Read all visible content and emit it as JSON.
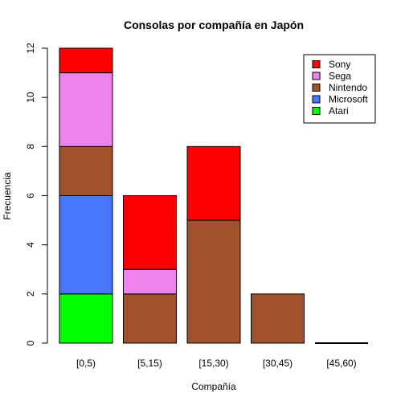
{
  "chart_data": {
    "type": "bar",
    "stacked": true,
    "title": "Consolas por compañía en Japón",
    "xlabel": "Compañía",
    "ylabel": "Frecuencia",
    "categories": [
      "[0,5)",
      "[5,15)",
      "[15,30)",
      "[30,45)",
      "[45,60)"
    ],
    "ylim": [
      0,
      12
    ],
    "yticks": [
      0,
      2,
      4,
      6,
      8,
      10,
      12
    ],
    "series": [
      {
        "name": "Atari",
        "color": "#00ff00",
        "values": [
          2,
          0,
          0,
          0,
          0
        ]
      },
      {
        "name": "Microsoft",
        "color": "#4876ff",
        "values": [
          4,
          0,
          0,
          0,
          0
        ]
      },
      {
        "name": "Nintendo",
        "color": "#a0522d",
        "values": [
          2,
          2,
          5,
          2,
          0
        ]
      },
      {
        "name": "Sega",
        "color": "#ee82ee",
        "values": [
          3,
          1,
          0,
          0,
          0
        ]
      },
      {
        "name": "Sony",
        "color": "#ff0000",
        "values": [
          1,
          3,
          3,
          0,
          0
        ]
      }
    ],
    "legend": {
      "position": "top-right",
      "order": [
        "Sony",
        "Sega",
        "Nintendo",
        "Microsoft",
        "Atari"
      ]
    },
    "grid": false
  }
}
